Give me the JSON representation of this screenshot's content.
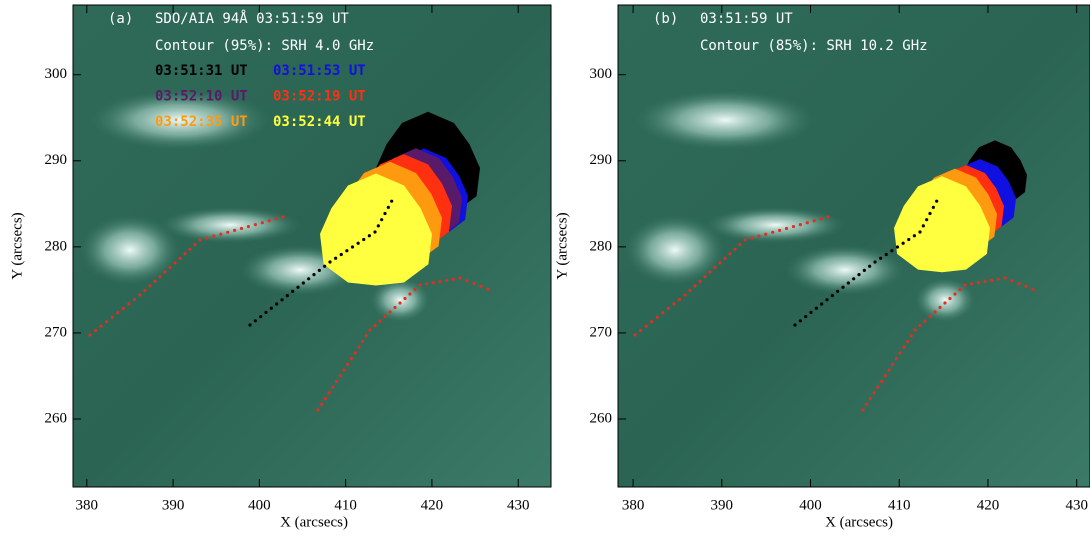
{
  "chart_data": [
    {
      "type": "image",
      "panel_label": "(a)",
      "title": "SDO/AIA 94Å 03:51:59 UT",
      "subtitle": "Contour (95%): SRH 4.0 GHz",
      "xlabel": "X (arcsecs)",
      "ylabel": "Y (arcsecs)",
      "xlim": [
        378.4,
        433.8
      ],
      "ylim": [
        252.1,
        308.1
      ],
      "xticks": [
        380,
        390,
        400,
        410,
        420,
        430
      ],
      "yticks": [
        260,
        270,
        280,
        290,
        300
      ],
      "series": [
        {
          "name": "03:51:31 UT",
          "color": "#000000"
        },
        {
          "name": "03:51:53 UT",
          "color": "#1010e0"
        },
        {
          "name": "03:52:10 UT",
          "color": "#5a1a6a"
        },
        {
          "name": "03:52:19 UT",
          "color": "#ff3010"
        },
        {
          "name": "03:52:35 UT",
          "color": "#ff9a10"
        },
        {
          "name": "03:52:44 UT",
          "color": "#ffff40"
        }
      ]
    },
    {
      "type": "image",
      "panel_label": "(b)",
      "title": "03:51:59 UT",
      "subtitle": "Contour (85%): SRH 10.2 GHz",
      "xlabel": "X (arcsecs)",
      "ylabel": "Y (arcsecs)",
      "xlim": [
        378.3,
        431.5
      ],
      "ylim": [
        252.1,
        308.1
      ],
      "xticks": [
        380,
        390,
        400,
        410,
        420,
        430
      ],
      "yticks": [
        260,
        270,
        280,
        290,
        300
      ],
      "contour_colors": [
        "#000000",
        "#1010e0",
        "#ff3010",
        "#ff9a10",
        "#ffff40"
      ]
    }
  ]
}
